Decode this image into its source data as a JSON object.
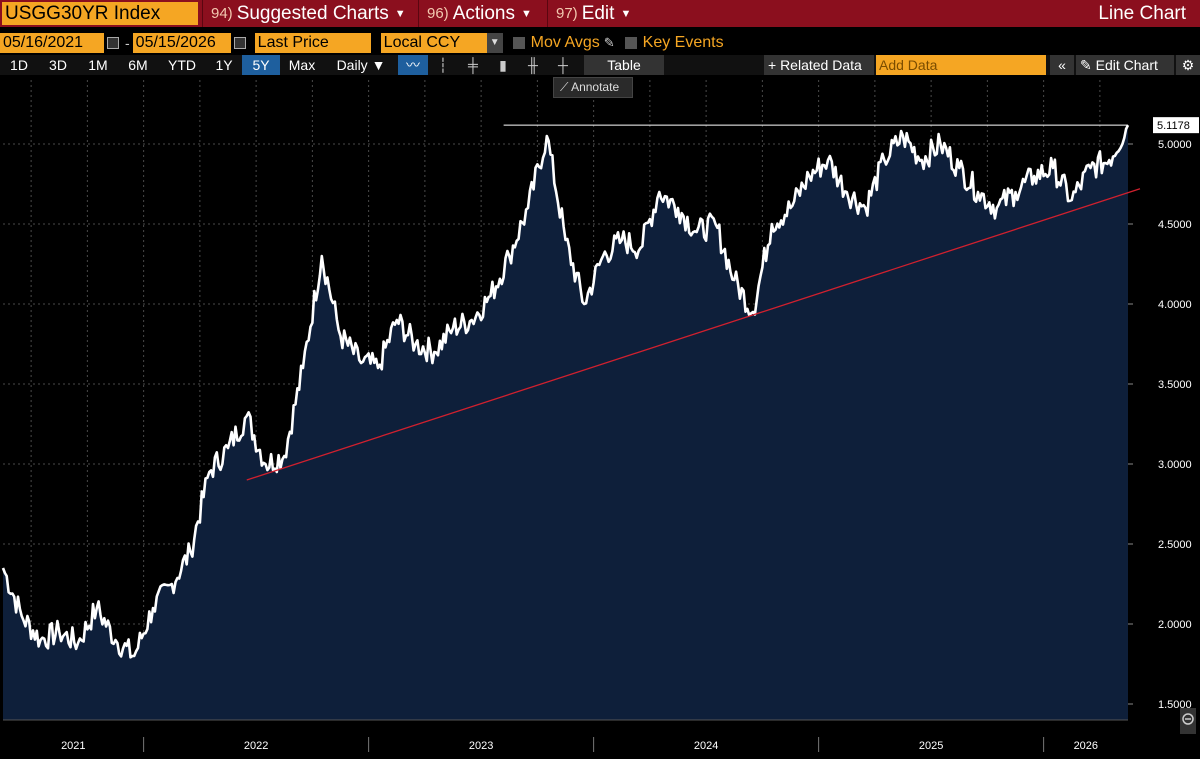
{
  "header": {
    "ticker": "USGG30YR Index",
    "menus": [
      {
        "num": "94)",
        "label": "Suggested Charts"
      },
      {
        "num": "96)",
        "label": "Actions"
      },
      {
        "num": "97)",
        "label": "Edit"
      }
    ],
    "view_title": "Line Chart"
  },
  "controls": {
    "start_date": "05/16/2021",
    "end_date": "05/15/2026",
    "date_separator": "-",
    "field": "Last Price",
    "currency": "Local CCY",
    "mov_avgs": "Mov Avgs",
    "key_events": "Key Events"
  },
  "toolbar": {
    "ranges": [
      "1D",
      "3D",
      "1M",
      "6M",
      "YTD",
      "1Y",
      "5Y",
      "Max"
    ],
    "active_range": "5Y",
    "frequency": "Daily ▼",
    "table": "Table",
    "related_data": "+ Related Data",
    "add_data_placeholder": "Add Data",
    "collapse": "«",
    "edit_chart": "✎ Edit Chart",
    "settings": "⚙",
    "annotate": "⟋ Annotate"
  },
  "chart_data": {
    "type": "area",
    "series": [
      {
        "x": [
          "2021-05",
          "2021-06",
          "2021-07",
          "2021-08",
          "2021-09",
          "2021-10",
          "2021-11",
          "2021-12",
          "2022-01",
          "2022-02",
          "2022-03",
          "2022-04",
          "2022-05",
          "2022-06",
          "2022-07",
          "2022-08",
          "2022-09",
          "2022-10",
          "2022-11",
          "2022-12",
          "2023-01",
          "2023-02",
          "2023-03",
          "2023-04",
          "2023-05",
          "2023-06",
          "2023-07",
          "2023-08",
          "2023-09",
          "2023-10",
          "2023-11",
          "2023-12",
          "2024-01",
          "2024-02",
          "2024-03",
          "2024-04",
          "2024-05",
          "2024-06",
          "2024-07",
          "2024-08",
          "2024-09",
          "2024-10",
          "2024-11",
          "2024-12",
          "2025-01",
          "2025-02",
          "2025-03",
          "2025-04",
          "2025-05",
          "2025-06",
          "2025-07",
          "2025-08",
          "2025-09",
          "2025-10",
          "2025-11",
          "2025-12",
          "2026-01",
          "2026-02",
          "2026-03",
          "2026-04",
          "2026-05"
        ],
        "values": [
          2.35,
          2.05,
          1.9,
          1.95,
          1.88,
          2.1,
          1.9,
          1.8,
          2.1,
          2.25,
          2.45,
          2.95,
          3.1,
          3.3,
          3.0,
          3.05,
          3.6,
          4.3,
          3.8,
          3.65,
          3.6,
          3.9,
          3.75,
          3.7,
          3.85,
          3.9,
          4.05,
          4.3,
          4.6,
          5.05,
          4.4,
          4.0,
          4.3,
          4.4,
          4.35,
          4.7,
          4.6,
          4.45,
          4.5,
          4.15,
          3.95,
          4.5,
          4.6,
          4.8,
          4.9,
          4.7,
          4.6,
          4.9,
          5.05,
          4.9,
          5.0,
          4.85,
          4.7,
          4.6,
          4.7,
          4.8,
          4.85,
          4.65,
          4.85,
          4.9,
          5.1178
        ]
      }
    ],
    "last_value": "5.1178",
    "ylim": [
      1.4,
      5.4
    ],
    "yticks": [
      "1.5000",
      "2.0000",
      "2.5000",
      "3.0000",
      "3.5000",
      "4.0000",
      "4.5000",
      "5.0000"
    ],
    "xticks": [
      "2021",
      "2022",
      "2023",
      "2024",
      "2025",
      "2026"
    ],
    "grid": true,
    "trendline": {
      "from": [
        "2022-06",
        2.9
      ],
      "to": [
        "2026-05",
        4.72
      ]
    },
    "high_line": 5.1178,
    "colors": {
      "line": "#ffffff",
      "fill": "#0e1f3a",
      "trend": "#d0202e",
      "grid": "#4a4a4a"
    }
  }
}
